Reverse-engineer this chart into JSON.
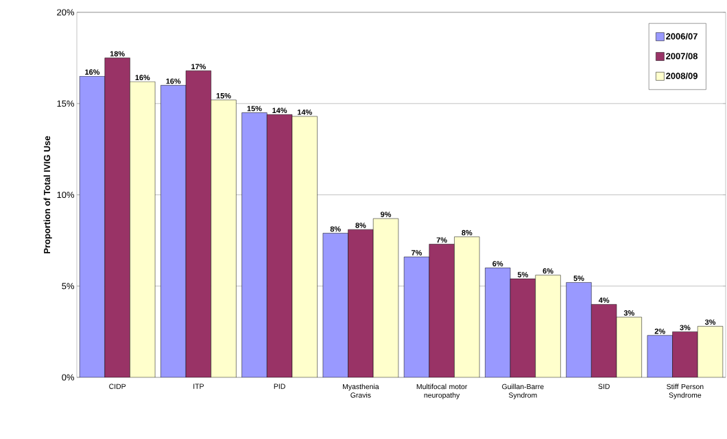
{
  "chart_data": {
    "type": "bar",
    "ylabel": "Proportion of Total IVIG Use",
    "categories": [
      "CIDP",
      "ITP",
      "PID",
      "Myasthenia Gravis",
      "Multifocal motor neuropathy",
      "Guillan-Barre Syndrom",
      "SID",
      "Stiff Person Syndrome"
    ],
    "series": [
      {
        "name": "2006/07",
        "color": "#9999ff",
        "values": [
          16.5,
          16.0,
          14.5,
          7.9,
          6.6,
          6.0,
          5.2,
          2.3
        ],
        "value_labels": [
          "16%",
          "16%",
          "15%",
          "8%",
          "7%",
          "6%",
          "5%",
          "2%"
        ]
      },
      {
        "name": "2007/08",
        "color": "#993366",
        "values": [
          17.5,
          16.8,
          14.4,
          8.1,
          7.3,
          5.4,
          4.0,
          2.5
        ],
        "value_labels": [
          "18%",
          "17%",
          "14%",
          "8%",
          "7%",
          "5%",
          "4%",
          "3%"
        ]
      },
      {
        "name": "2008/09",
        "color": "#ffffcc",
        "values": [
          16.2,
          15.2,
          14.3,
          8.7,
          7.7,
          5.6,
          3.3,
          2.8
        ],
        "value_labels": [
          "16%",
          "15%",
          "14%",
          "9%",
          "8%",
          "6%",
          "3%",
          "3%"
        ]
      }
    ],
    "ylim": [
      0,
      20
    ],
    "yticks": [
      {
        "value": 0,
        "label": "0%"
      },
      {
        "value": 5,
        "label": "5%"
      },
      {
        "value": 10,
        "label": "10%"
      },
      {
        "value": 15,
        "label": "15%"
      },
      {
        "value": 20,
        "label": "20%"
      }
    ],
    "grid": "y",
    "legend": "top right"
  }
}
